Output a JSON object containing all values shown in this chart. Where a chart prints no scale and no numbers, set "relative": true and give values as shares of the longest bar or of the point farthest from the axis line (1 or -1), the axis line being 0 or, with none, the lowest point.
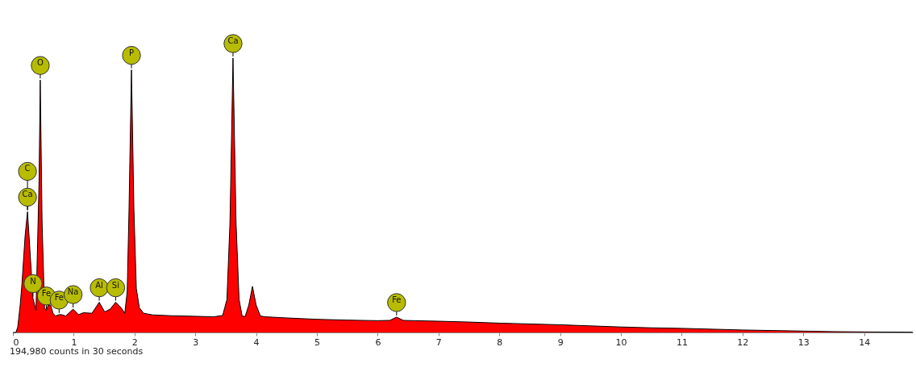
{
  "chart_data": {
    "type": "area",
    "relative": true,
    "x": [
      0,
      0.05,
      0.08,
      0.12,
      0.15,
      0.2,
      0.24,
      0.28,
      0.33,
      0.38,
      0.43,
      0.45,
      0.48,
      0.52,
      0.55,
      0.58,
      0.62,
      0.66,
      0.7,
      0.76,
      0.8,
      0.87,
      0.99,
      1.08,
      1.16,
      1.3,
      1.42,
      1.51,
      1.6,
      1.69,
      1.78,
      1.84,
      1.88,
      1.91,
      1.95,
      1.99,
      2.03,
      2.08,
      2.15,
      2.3,
      2.6,
      3.0,
      3.3,
      3.45,
      3.52,
      3.57,
      3.62,
      3.67,
      3.72,
      3.77,
      3.82,
      3.88,
      3.94,
      4.0,
      4.07,
      4.15,
      4.5,
      5.0,
      5.5,
      6.0,
      6.2,
      6.31,
      6.42,
      6.6,
      7.0,
      7.5,
      8.0,
      8.5,
      9.0,
      9.5,
      10.0,
      10.5,
      11.0,
      11.5,
      12.0,
      12.5,
      13.0,
      13.5,
      14.0,
      14.8
    ],
    "series": [
      {
        "color": "#ff0000",
        "values": [
          0,
          0,
          0.02,
          0.1,
          0.18,
          0.35,
          0.44,
          0.3,
          0.125,
          0.08,
          0.55,
          0.92,
          0.4,
          0.09,
          0.08,
          0.1,
          0.1,
          0.07,
          0.06,
          0.065,
          0.065,
          0.06,
          0.085,
          0.065,
          0.072,
          0.07,
          0.11,
          0.075,
          0.085,
          0.11,
          0.09,
          0.07,
          0.15,
          0.45,
          0.957,
          0.45,
          0.16,
          0.09,
          0.07,
          0.064,
          0.061,
          0.059,
          0.057,
          0.062,
          0.12,
          0.4,
          1.0,
          0.4,
          0.12,
          0.06,
          0.058,
          0.1,
          0.168,
          0.1,
          0.06,
          0.057,
          0.053,
          0.048,
          0.045,
          0.043,
          0.044,
          0.056,
          0.044,
          0.043,
          0.041,
          0.038,
          0.034,
          0.031,
          0.028,
          0.024,
          0.02,
          0.017,
          0.015,
          0.012,
          0.009,
          0.007,
          0.005,
          0.003,
          0.002,
          0.001
        ]
      }
    ],
    "xlim": [
      0,
      14.8
    ],
    "xticks": [
      0,
      1,
      2,
      3,
      4,
      5,
      6,
      7,
      8,
      9,
      10,
      11,
      12,
      13,
      14
    ],
    "annotations": [
      {
        "text": "C",
        "x": 0.24,
        "y": 0.44
      },
      {
        "text": "Ca",
        "x": 0.24,
        "y": 0.44
      },
      {
        "text": "O",
        "x": 0.45,
        "y": 0.92
      },
      {
        "text": "P",
        "x": 1.95,
        "y": 0.957
      },
      {
        "text": "Ca",
        "x": 3.62,
        "y": 1.0
      },
      {
        "text": "N",
        "x": 0.33,
        "y": 0.125
      },
      {
        "text": "Fe",
        "x": 0.55,
        "y": 0.08
      },
      {
        "text": "Fe",
        "x": 0.76,
        "y": 0.065
      },
      {
        "text": "Na",
        "x": 0.99,
        "y": 0.085
      },
      {
        "text": "Al",
        "x": 1.42,
        "y": 0.11
      },
      {
        "text": "Si",
        "x": 1.69,
        "y": 0.11
      },
      {
        "text": "Fe",
        "x": 6.31,
        "y": 0.056
      },
      "194,980 counts in 30 seconds"
    ]
  }
}
